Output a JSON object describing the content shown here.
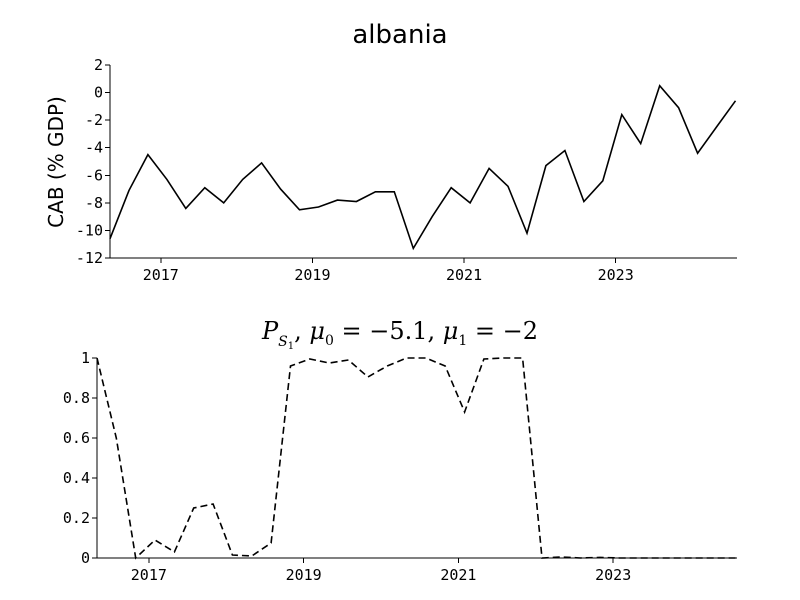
{
  "chart_data": [
    {
      "type": "line",
      "title": "albania",
      "ylabel": "CAB (% GDP)",
      "xlabel": "",
      "xlim": [
        2016.33,
        2024.6
      ],
      "ylim": [
        -12,
        2
      ],
      "x_ticks": [
        2017,
        2019,
        2021,
        2023
      ],
      "x_tick_labels": [
        "2017",
        "2019",
        "2021",
        "2023"
      ],
      "y_ticks": [
        2,
        0,
        -2,
        -4,
        -6,
        -8,
        -10,
        -12
      ],
      "y_tick_labels": [
        "2",
        "0",
        "-2",
        "-4",
        "-6",
        "-8",
        "-10",
        "-12"
      ],
      "grid": false,
      "series": [
        {
          "style": "solid",
          "color": "#000000",
          "x": [
            2016.33,
            2016.58,
            2016.83,
            2017.08,
            2017.33,
            2017.58,
            2017.83,
            2018.08,
            2018.33,
            2018.58,
            2018.83,
            2019.08,
            2019.33,
            2019.58,
            2019.83,
            2020.08,
            2020.33,
            2020.58,
            2020.83,
            2021.08,
            2021.33,
            2021.58,
            2021.83,
            2022.08,
            2022.33,
            2022.58,
            2022.83,
            2023.08,
            2023.33,
            2023.58,
            2023.83,
            2024.08,
            2024.33,
            2024.58
          ],
          "values": [
            -10.6,
            -7.1,
            -4.5,
            -6.3,
            -8.4,
            -6.9,
            -8.0,
            -6.3,
            -5.1,
            -7.0,
            -8.5,
            -8.3,
            -7.8,
            -7.9,
            -7.2,
            -7.2,
            -11.3,
            -9.0,
            -6.9,
            -8.0,
            -5.5,
            -6.8,
            -10.2,
            -5.3,
            -4.2,
            -7.9,
            -6.4,
            -1.6,
            -3.7,
            0.5,
            -1.1,
            -4.4,
            -2.5,
            -0.6
          ]
        }
      ]
    },
    {
      "type": "line",
      "title": "P_{S_1}, μ_0 = −5.1, μ_1 = −2",
      "title_parts": {
        "P": "P",
        "P_sub": "S",
        "P_subsub": "1",
        "mu0": "μ",
        "mu0_sub": "0",
        "mu0_val": " = −5.1, ",
        "mu1": "μ",
        "mu1_sub": "1",
        "mu1_val": " = −2",
        "comma": ", "
      },
      "ylabel": "",
      "xlabel": "",
      "xlim": [
        2016.33,
        2024.6
      ],
      "ylim": [
        0,
        1
      ],
      "x_ticks": [
        2017,
        2019,
        2021,
        2023
      ],
      "x_tick_labels": [
        "2017",
        "2019",
        "2021",
        "2023"
      ],
      "y_ticks": [
        1,
        0.8,
        0.6,
        0.4,
        0.2,
        0
      ],
      "y_tick_labels": [
        "1",
        "0.8",
        "0.6",
        "0.4",
        "0.2",
        "0"
      ],
      "grid": false,
      "series": [
        {
          "style": "dashed",
          "color": "#000000",
          "x": [
            2016.33,
            2016.58,
            2016.83,
            2017.08,
            2017.33,
            2017.58,
            2017.83,
            2018.08,
            2018.33,
            2018.58,
            2018.83,
            2019.08,
            2019.33,
            2019.58,
            2019.83,
            2020.08,
            2020.33,
            2020.58,
            2020.83,
            2021.08,
            2021.33,
            2021.58,
            2021.83,
            2022.08,
            2022.33,
            2022.58,
            2022.83,
            2023.08,
            2023.33,
            2023.58,
            2023.83,
            2024.08,
            2024.33,
            2024.58
          ],
          "values": [
            1.0,
            0.6,
            0.0,
            0.09,
            0.03,
            0.25,
            0.27,
            0.015,
            0.01,
            0.075,
            0.96,
            0.995,
            0.975,
            0.99,
            0.905,
            0.96,
            1.0,
            1.0,
            0.96,
            0.73,
            0.995,
            1.0,
            1.0,
            0.0,
            0.005,
            0.0,
            0.003,
            0.0,
            0.0,
            0.0,
            0.0,
            0.0,
            0.0,
            0.0
          ]
        }
      ]
    }
  ]
}
